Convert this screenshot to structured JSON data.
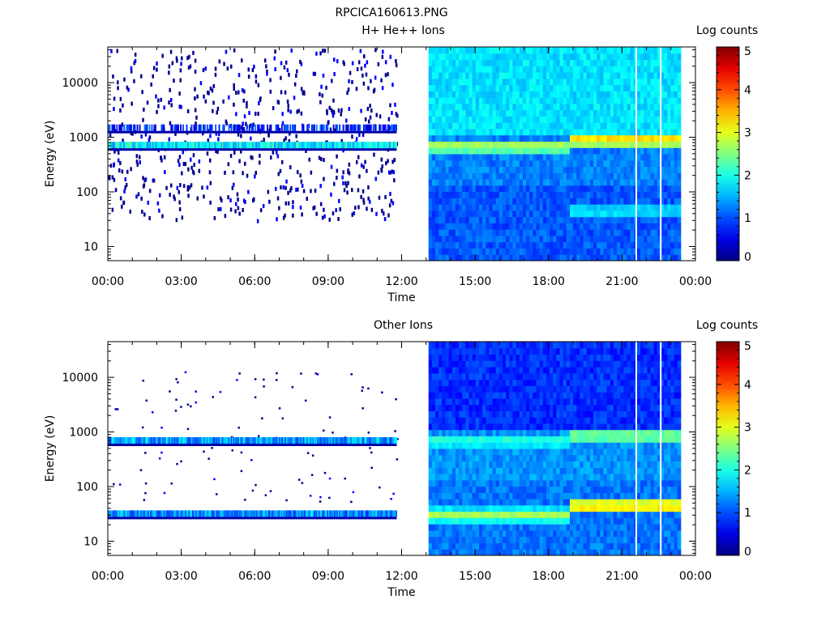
{
  "file_title": "RPCICA160613.PNG",
  "chart_data": [
    {
      "type": "heatmap",
      "title": "H+ He++ Ions",
      "xlabel": "Time",
      "ylabel": "Energy (eV)",
      "colorbar_label": "Log counts",
      "x_ticks": [
        "00:00",
        "03:00",
        "06:00",
        "09:00",
        "12:00",
        "15:00",
        "18:00",
        "21:00",
        "00:00"
      ],
      "x_range_hours": [
        0,
        24
      ],
      "y_scale": "log",
      "y_range": [
        5.5,
        45000
      ],
      "y_ticks": [
        10,
        100,
        1000,
        10000
      ],
      "y_tick_labels": [
        "10",
        "100",
        "1000",
        "10000"
      ],
      "colorbar_range": [
        0,
        5
      ],
      "colorbar_ticks": [
        "0",
        "1",
        "2",
        "3",
        "4",
        "5"
      ],
      "data_gap_hours": [
        11.8,
        13.1
      ],
      "data_end_hours": 23.4,
      "features": [
        {
          "segment": "sparse",
          "hours": [
            0,
            11.8
          ],
          "energy_eV": 720,
          "level": 1.8
        },
        {
          "segment": "sparse",
          "hours": [
            0,
            11.8
          ],
          "energy_eV": 1500,
          "level": 0.8
        },
        {
          "segment": "dense",
          "hours": [
            13.1,
            18.9
          ],
          "energy_eV": 680,
          "level": 3.0
        },
        {
          "segment": "dense",
          "hours": [
            18.9,
            23.4
          ],
          "energy_eV": 900,
          "level": 3.6
        },
        {
          "segment": "dense",
          "hours": [
            18.9,
            23.4
          ],
          "energy_eV": 45,
          "level": 2.0
        }
      ]
    },
    {
      "type": "heatmap",
      "title": "Other Ions",
      "xlabel": "Time",
      "ylabel": "Energy (eV)",
      "colorbar_label": "Log counts",
      "x_ticks": [
        "00:00",
        "03:00",
        "06:00",
        "09:00",
        "12:00",
        "15:00",
        "18:00",
        "21:00",
        "00:00"
      ],
      "x_range_hours": [
        0,
        24
      ],
      "y_scale": "log",
      "y_range": [
        5.5,
        45000
      ],
      "y_ticks": [
        10,
        100,
        1000,
        10000
      ],
      "y_tick_labels": [
        "10",
        "100",
        "1000",
        "10000"
      ],
      "colorbar_range": [
        0,
        5
      ],
      "colorbar_ticks": [
        "0",
        "1",
        "2",
        "3",
        "4",
        "5"
      ],
      "data_gap_hours": [
        11.8,
        13.1
      ],
      "data_end_hours": 23.4,
      "features": [
        {
          "segment": "sparse",
          "hours": [
            0,
            11.8
          ],
          "energy_eV": 700,
          "level": 1.4
        },
        {
          "segment": "sparse",
          "hours": [
            0,
            11.8
          ],
          "energy_eV": 32,
          "level": 1.3
        },
        {
          "segment": "dense",
          "hours": [
            13.1,
            18.9
          ],
          "energy_eV": 680,
          "level": 2.3
        },
        {
          "segment": "dense",
          "hours": [
            18.9,
            23.4
          ],
          "energy_eV": 850,
          "level": 2.8
        },
        {
          "segment": "dense",
          "hours": [
            13.1,
            18.9
          ],
          "energy_eV": 30,
          "level": 2.8
        },
        {
          "segment": "dense",
          "hours": [
            18.9,
            23.4
          ],
          "energy_eV": 45,
          "level": 3.7
        }
      ]
    }
  ]
}
